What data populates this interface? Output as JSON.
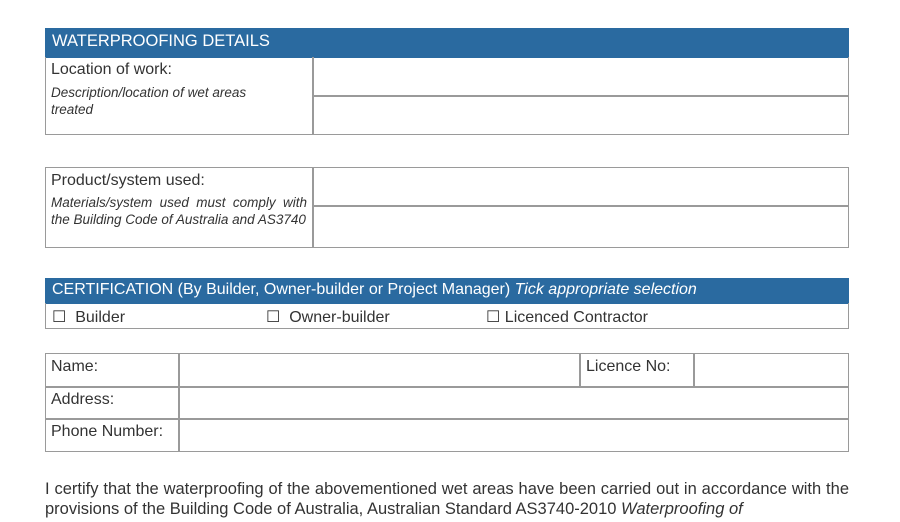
{
  "waterproofing": {
    "title": "WATERPROOFING DETAILS",
    "location_label": "Location of work:",
    "location_hint": "Description/location of wet areas treated",
    "product_label": "Product/system used:",
    "product_hint": "Materials/system used must comply with the Building Code of Australia and AS3740"
  },
  "certification": {
    "title": "CERTIFICATION",
    "by": " (By Builder, Owner-builder or Project Manager) ",
    "tick": "Tick appropriate selection",
    "options": [
      "Builder",
      "Owner-builder",
      "Licenced Contractor"
    ],
    "checkbox_glyph": "☐"
  },
  "details": {
    "name_label": "Name:",
    "licence_label": "Licence No:",
    "address_label": "Address:",
    "phone_label": "Phone Number:"
  },
  "statement": {
    "text": "I certify that the waterproofing of the abovementioned wet areas have been carried out in accordance with the provisions of the Building Code of Australia, Australian Standard AS3740-2010 ",
    "italic": "Waterproofing of"
  },
  "colors": {
    "header": "#2a6aa0"
  }
}
